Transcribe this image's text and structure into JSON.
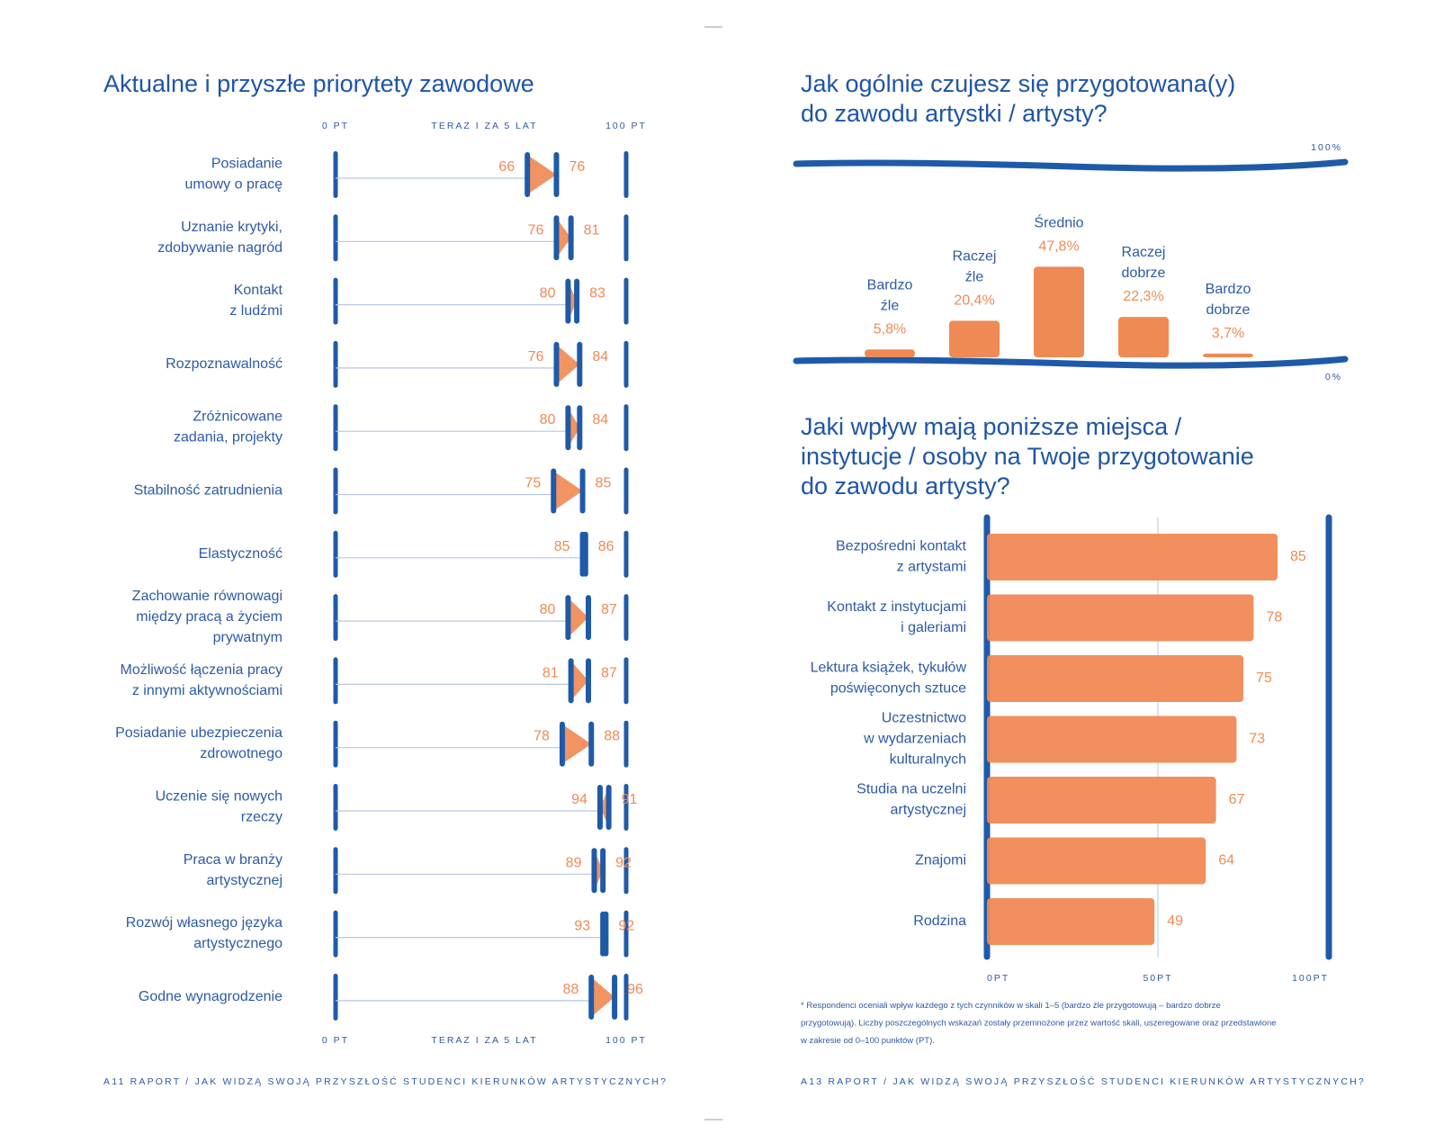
{
  "chart_data": [
    {
      "type": "arrow",
      "title": "Aktualne i przyszłe priorytety zawodowe",
      "x_label": "TERAZ I ZA 5 LAT",
      "xlim": [
        0,
        100
      ],
      "xticks": [
        {
          "value": 0,
          "label": "0 PT"
        },
        {
          "value": 100,
          "label": "100 PT"
        }
      ],
      "arrow_color": "#f08a55",
      "marker_color": "#1f5aa8",
      "categories": [
        "Posiadanie\numowy o pracę",
        "Uznanie krytyki,\nzdobywanie nagród",
        "Kontakt\nz ludźmi",
        "Rozpoznawalność",
        "Zróżnicowane\nzadania, projekty",
        "Stabilność zatrudnienia",
        "Elastyczność",
        "Zachowanie równowagi\nmiędzy pracą a życiem\nprywatnym",
        "Możliwość łączenia pracy\nz innymi aktywnościami",
        "Posiadanie ubezpieczenia\nzdrowotnego",
        "Uczenie się nowych\nrzeczy",
        "Praca w branży\nartystycznej",
        "Rozwój własnego języka\nartystycznego",
        "Godne wynagrodzenie"
      ],
      "series": [
        {
          "values": [
            66,
            76,
            80,
            76,
            80,
            75,
            85,
            80,
            81,
            78,
            94,
            89,
            93,
            88
          ]
        },
        {
          "values": [
            76,
            81,
            83,
            84,
            84,
            85,
            86,
            87,
            87,
            88,
            91,
            92,
            92,
            96
          ]
        }
      ]
    },
    {
      "type": "bar",
      "title": "Jak ogólnie czujesz się przygotowana(y)\ndo zawodu artystki / artysty?",
      "ylim": [
        0,
        100
      ],
      "yticks": [
        {
          "value": 0,
          "label": "0%"
        },
        {
          "value": 100,
          "label": "100%"
        }
      ],
      "color": "#f08a55",
      "axis_color": "#1f5aa8",
      "categories": [
        "Bardzo\nźle",
        "Raczej\nźle",
        "Średnio",
        "Raczej\ndobrze",
        "Bardzo\ndobrze"
      ],
      "values": [
        5.8,
        20.4,
        47.8,
        22.3,
        3.7
      ],
      "value_labels": [
        "5,8%",
        "20,4%",
        "47,8%",
        "22,3%",
        "3,7%"
      ]
    },
    {
      "type": "barh",
      "title": "Jaki wpływ mają poniższe miejsca /\ninstytucje / osoby na Twoje przygotowanie\ndo zawodu artysty?",
      "xlim": [
        0,
        100
      ],
      "xticks": [
        {
          "value": 0,
          "label": "0PT"
        },
        {
          "value": 50,
          "label": "50PT"
        },
        {
          "value": 100,
          "label": "100PT"
        }
      ],
      "color": "#f08a55",
      "axis_color": "#1f5aa8",
      "categories": [
        "Bezpośredni kontakt\nz artystami",
        "Kontakt z instytucjami\ni galeriami",
        "Lektura książek, tykułów\npoświęconych sztuce",
        "Uczestnictwo\nw wydarzeniach\nkulturalnych",
        "Studia na uczelni\nartystycznej",
        "Znajomi",
        "Rodzina"
      ],
      "values": [
        85,
        78,
        75,
        73,
        67,
        64,
        49
      ],
      "note": "* Respondenci oceniali wpływ każdego z tych czynników w skali 1–5 (bardzo źle przygotowują – bardzo dobrze\nprzygotowują). Liczby poszczególnych wskazań zostały przemnożone przez wartość skali, uszeregowane oraz przedstawione\nw zakresie od 0–100 punktów (PT)."
    }
  ],
  "footers": [
    "A11 RAPORT / JAK WIDZĄ SWOJĄ PRZYSZŁOŚĆ STUDENCI KIERUNKÓW ARTYSTYCZNYCH?",
    "A13 RAPORT / JAK WIDZĄ SWOJĄ PRZYSZŁOŚĆ STUDENCI KIERUNKÓW ARTYSTYCZNYCH?"
  ]
}
